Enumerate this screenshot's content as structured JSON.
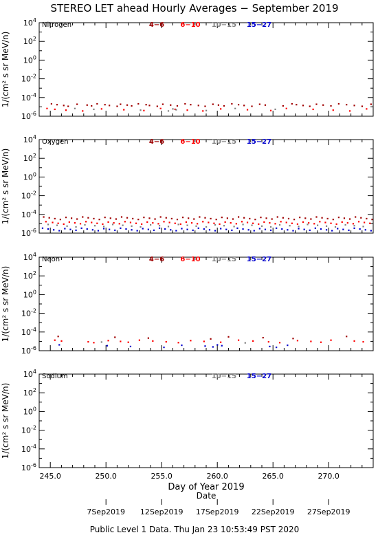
{
  "title": "STEREO LET ahead Hourly Averages − September 2019",
  "footer": "Public Level 1 Data. Thu Jan 23 10:53:49 PST 2020",
  "colors": {
    "e4_6": "#a00000",
    "e6_10": "#ff0000",
    "e10_15": "#808080",
    "e15_27": "#0000cc"
  },
  "chart_data": {
    "type": "scatter",
    "xlabel": "Day of Year 2019",
    "secondary_xlabel": "Date",
    "xlim": [
      244,
      274
    ],
    "xticks": [
      "245.0",
      "250.0",
      "255.0",
      "260.0",
      "265.0",
      "270.0"
    ],
    "date_labels": [
      {
        "doy": 250,
        "label": "7Sep2019"
      },
      {
        "doy": 255,
        "label": "12Sep2019"
      },
      {
        "doy": 260,
        "label": "17Sep2019"
      },
      {
        "doy": 265,
        "label": "22Sep2019"
      },
      {
        "doy": 270,
        "label": "27Sep2019"
      }
    ],
    "ylabel": "1/(cm² s sr MeV/n)",
    "yscale": "log",
    "ylim_exponents": [
      -6,
      4
    ],
    "ytick_exponents": [
      -6,
      -4,
      -2,
      0,
      2,
      4
    ],
    "legend": [
      "4−6",
      "6−10",
      "10−15",
      "15−27"
    ],
    "panels": [
      {
        "name": "Nitrogen",
        "legend_shown": [
          true,
          true,
          true,
          true
        ],
        "series": [
          {
            "name": "4−6",
            "y_exponent": -4.8,
            "x": [
              245.1,
              245.6,
              246.2,
              246.6,
              247.4,
              248.3,
              248.7,
              249.2,
              249.9,
              250.3,
              251.0,
              251.3,
              251.9,
              252.3,
              252.9,
              253.6,
              253.9,
              254.6,
              255.1,
              255.8,
              256.4,
              257.1,
              257.6,
              258.3,
              258.9,
              259.6,
              260.1,
              260.6,
              261.3,
              261.9,
              262.4,
              263.1,
              263.8,
              264.3,
              265.9,
              266.7,
              267.1,
              267.7,
              268.3,
              268.9,
              269.5,
              270.2,
              270.9,
              271.6,
              272.3,
              273.0,
              273.8
            ]
          },
          {
            "name": "6−10",
            "y_exponent": -5.3,
            "x": [
              244.7,
              245.4,
              246.4,
              247.9,
              249.6,
              251.6,
              253.4,
              254.9,
              256.2,
              257.3,
              258.7,
              260.3,
              262.7,
              264.8,
              266.2,
              268.6,
              270.4,
              271.9,
              273.4
            ]
          },
          {
            "name": "10−15",
            "y_exponent": -5.3,
            "x": [
              247.2,
              248.9,
              253.1,
              255.6,
              256.0,
              256.3,
              259.0,
              261.6,
              265.2
            ]
          },
          {
            "name": "15−27",
            "y_exponent": -5.5,
            "x": []
          }
        ]
      },
      {
        "name": "Oxygen",
        "legend_shown": [
          true,
          true,
          true,
          true
        ],
        "series": [
          {
            "name": "4−6",
            "y_exponent": -4.4,
            "x": [
              244.4,
              244.9,
              245.4,
              245.9,
              246.4,
              246.9,
              247.4,
              247.9,
              248.4,
              248.9,
              249.4,
              249.9,
              250.4,
              250.9,
              251.4,
              251.9,
              252.4,
              252.9,
              253.4,
              253.9,
              254.4,
              254.9,
              255.4,
              255.9,
              256.4,
              256.9,
              257.4,
              257.9,
              258.4,
              258.9,
              259.4,
              259.9,
              260.4,
              260.9,
              261.4,
              261.9,
              262.4,
              262.9,
              263.4,
              263.9,
              264.4,
              264.9,
              265.4,
              265.9,
              266.4,
              266.9,
              267.4,
              267.9,
              268.4,
              268.9,
              269.4,
              269.9,
              270.4,
              270.9,
              271.4,
              271.9,
              272.4,
              272.9,
              273.4,
              273.9
            ]
          },
          {
            "name": "6−10",
            "y_exponent": -4.9,
            "x": [
              244.6,
              245.2,
              245.7,
              246.2,
              246.7,
              247.2,
              247.7,
              248.2,
              248.7,
              249.2,
              249.7,
              250.2,
              250.7,
              251.2,
              251.7,
              252.2,
              252.7,
              253.2,
              253.7,
              254.2,
              254.7,
              255.2,
              255.7,
              256.2,
              256.7,
              257.2,
              257.7,
              258.2,
              258.7,
              259.2,
              259.7,
              260.2,
              260.7,
              261.2,
              261.7,
              262.2,
              262.7,
              263.2,
              263.7,
              264.2,
              264.7,
              265.2,
              265.7,
              266.2,
              266.7,
              267.2,
              267.7,
              268.2,
              268.7,
              269.2,
              269.7,
              270.2,
              270.7,
              271.2,
              271.7,
              272.2,
              272.7,
              273.2,
              273.7
            ]
          },
          {
            "name": "10−15",
            "y_exponent": -5.2,
            "x": [
              244.8,
              245.6,
              246.5,
              247.3,
              248.1,
              249.0,
              249.8,
              250.6,
              251.5,
              252.3,
              253.1,
              254.0,
              254.8,
              255.6,
              256.5,
              257.3,
              258.1,
              259.0,
              259.8,
              260.6,
              261.5,
              262.3,
              263.1,
              264.0,
              264.8,
              265.6,
              266.5,
              267.3,
              268.1,
              269.0,
              269.8,
              270.6,
              271.5,
              272.3,
              273.1
            ]
          },
          {
            "name": "15−27",
            "y_exponent": -5.6,
            "x": [
              244.3,
              244.8,
              245.3,
              245.8,
              246.3,
              246.8,
              247.3,
              247.8,
              248.3,
              248.8,
              249.3,
              249.8,
              250.3,
              250.8,
              251.3,
              251.8,
              252.3,
              252.8,
              253.3,
              253.8,
              254.3,
              254.8,
              255.3,
              255.8,
              256.3,
              256.8,
              257.3,
              257.8,
              258.3,
              258.8,
              259.3,
              259.8,
              260.3,
              260.8,
              261.3,
              261.8,
              262.3,
              262.8,
              263.3,
              263.8,
              264.3,
              264.8,
              265.3,
              265.8,
              266.3,
              266.8,
              267.3,
              267.8,
              268.3,
              268.8,
              269.3,
              269.8,
              270.3,
              270.8,
              271.3,
              271.8,
              272.3,
              272.8,
              273.3,
              273.8
            ]
          }
        ]
      },
      {
        "name": "Neon",
        "legend_shown": [
          true,
          true,
          true,
          true
        ],
        "series": [
          {
            "name": "4−6",
            "y_exponent": -4.6,
            "x": [
              245.7,
              250.8,
              253.8,
              259.4,
              261.0,
              264.1,
              266.8,
              271.6
            ]
          },
          {
            "name": "6−10",
            "y_exponent": -5.0,
            "x": [
              245.4,
              246.0,
              248.4,
              248.9,
              250.2,
              251.3,
              252.0,
              253.0,
              254.2,
              255.4,
              256.5,
              257.6,
              258.8,
              260.3,
              261.9,
              263.2,
              264.6,
              265.6,
              267.2,
              268.4,
              269.3,
              270.2,
              272.3,
              273.1
            ]
          },
          {
            "name": "10−15",
            "y_exponent": -5.2,
            "x": [
              249.6,
              262.5
            ]
          },
          {
            "name": "15−27",
            "y_exponent": -5.5,
            "x": [
              245.8,
              250.1,
              252.2,
              255.2,
              256.8,
              258.9,
              259.6,
              260.0,
              260.4,
              264.7,
              265.3,
              266.3
            ]
          }
        ]
      },
      {
        "name": "Sodium",
        "legend_shown": [
          false,
          false,
          true,
          true
        ],
        "series": [
          {
            "name": "10−15",
            "y_exponent": -5.3,
            "x": []
          },
          {
            "name": "15−27",
            "y_exponent": -5.5,
            "x": []
          }
        ]
      }
    ]
  }
}
